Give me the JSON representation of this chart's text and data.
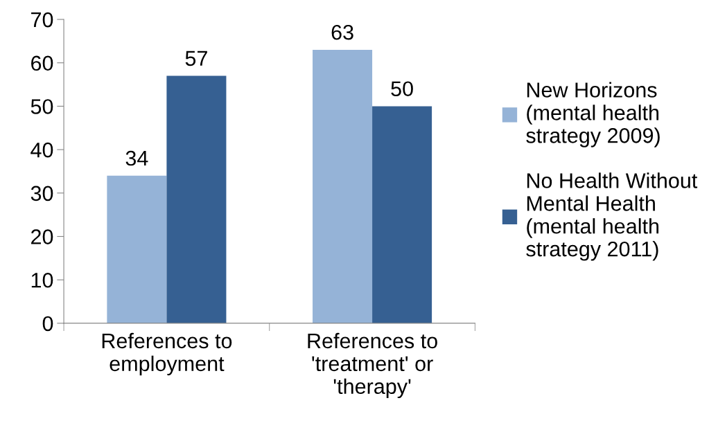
{
  "chart_data": {
    "type": "bar",
    "categories": [
      "References to\nemployment",
      "References to\n'treatment' or\n'therapy'"
    ],
    "series": [
      {
        "name": "New Horizons\n(mental health\nstrategy 2009)",
        "color": "#95b3d7",
        "values": [
          34,
          63
        ]
      },
      {
        "name": "No Health Without\nMental Health\n(mental health\nstrategy 2011)",
        "color": "#366092",
        "values": [
          57,
          50
        ]
      }
    ],
    "ylim": [
      0,
      70
    ],
    "yticks": [
      0,
      10,
      20,
      30,
      40,
      50,
      60,
      70
    ],
    "data_labels": true,
    "grid": false,
    "legend": "right"
  }
}
